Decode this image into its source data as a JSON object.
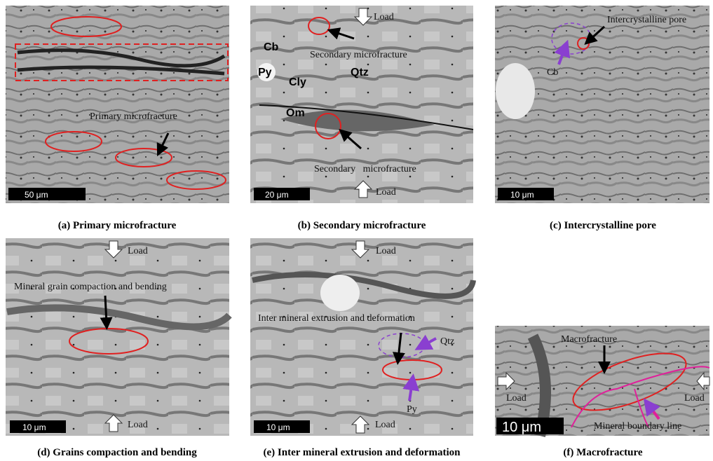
{
  "panels": [
    {
      "caption": "(a) Primary  microfracture",
      "scale": "50 μm",
      "labels": [
        "Primary microfracture"
      ]
    },
    {
      "caption": "(b) Secondary microfracture",
      "scale": "20 μm",
      "labels": [
        "Load",
        "Cb",
        "Py",
        "Cly",
        "Qtz",
        "Secondary microfracture",
        "Om",
        "Secondary   microfracture",
        "Load"
      ]
    },
    {
      "caption": "(c) Intercrystalline pore",
      "scale": "10 μm",
      "labels": [
        "Intercrystalline pore",
        "Cb"
      ]
    },
    {
      "caption": "(d) Grains compaction and bending",
      "scale": "10 μm",
      "labels": [
        "Load",
        "Mineral grain compaction and bending",
        "Load"
      ]
    },
    {
      "caption": "(e) Inter mineral extrusion and deformation",
      "scale": "10 μm",
      "labels": [
        "Load",
        "Inter mineral extrusion and deformation",
        "Qtz",
        "Py",
        "Load"
      ]
    },
    {
      "caption": "(f) Macrofracture",
      "scale": "10 μm",
      "labels": [
        "Macrofracture",
        "Load",
        "Load",
        "Mineral boundary line"
      ]
    }
  ]
}
